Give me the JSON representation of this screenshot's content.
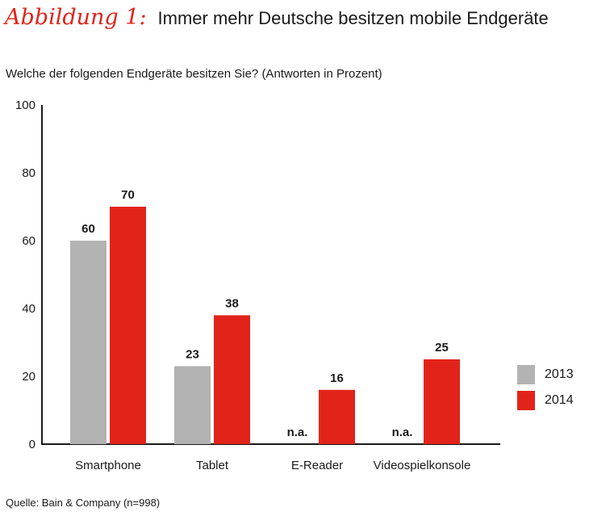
{
  "figure": {
    "label": "Abbildung 1:",
    "title": "Immer mehr Deutsche besitzen mobile Endgeräte",
    "question": "Welche der folgenden Endgeräte besitzen Sie? (Antworten in Prozent)",
    "source": "Quelle: Bain & Company (n=998)"
  },
  "chart_data": {
    "type": "bar",
    "categories": [
      "Smartphone",
      "Tablet",
      "E-Reader",
      "Videospielkonsole"
    ],
    "series": [
      {
        "name": "2013",
        "values": [
          60,
          23,
          null,
          null
        ],
        "color": "#b3b3b3"
      },
      {
        "name": "2014",
        "values": [
          70,
          38,
          16,
          25
        ],
        "color": "#e2231a"
      }
    ],
    "missing_label": "n.a.",
    "ylim": [
      0,
      100
    ],
    "yticks": [
      0,
      20,
      40,
      60,
      80,
      100
    ],
    "grid": false,
    "legend_position": "right"
  }
}
